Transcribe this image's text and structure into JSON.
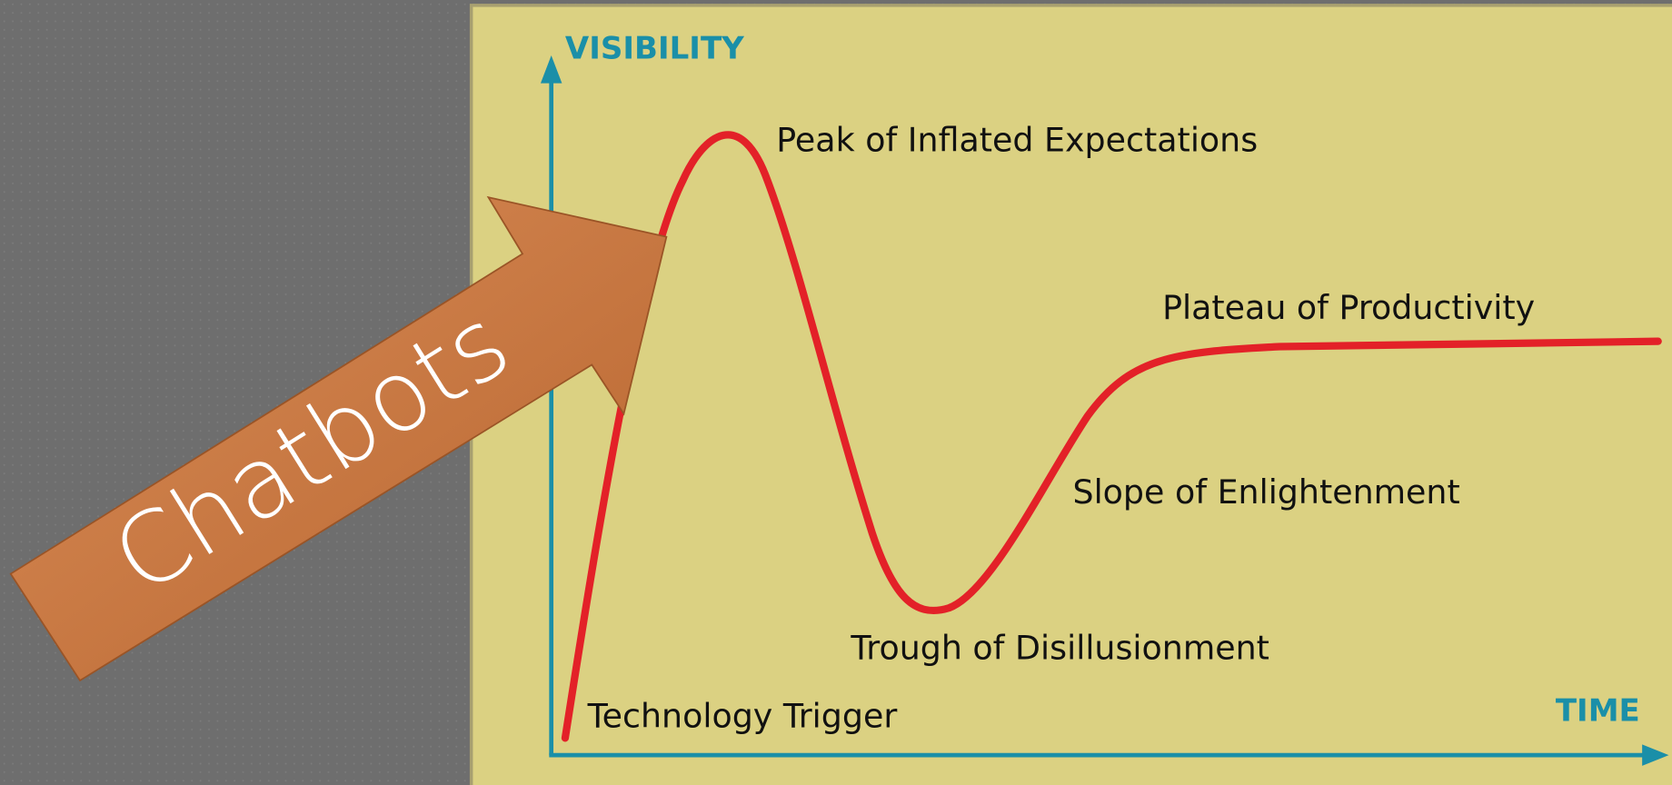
{
  "axes": {
    "y_label": "VISIBILITY",
    "x_label": "TIME"
  },
  "phases": [
    {
      "label": "Technology Trigger"
    },
    {
      "label": "Peak of Inflated Expectations"
    },
    {
      "label": "Trough of Disillusionment"
    },
    {
      "label": "Slope of Enlightenment"
    },
    {
      "label": "Plateau of Productivity"
    }
  ],
  "callout": {
    "label": "Chatbots"
  }
}
